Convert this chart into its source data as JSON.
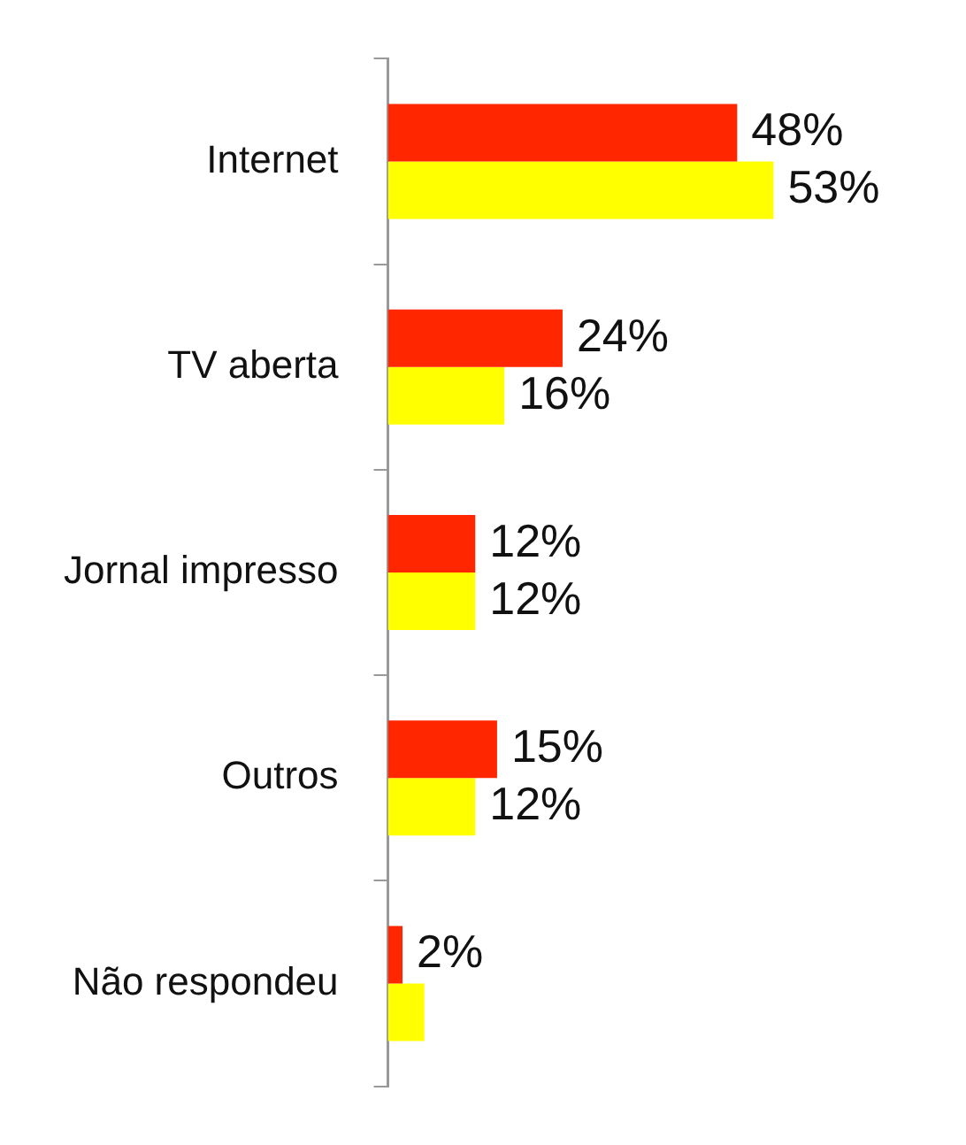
{
  "chart_data": {
    "type": "bar",
    "orientation": "horizontal",
    "categories": [
      "Internet",
      "TV aberta",
      "Jornal impresso",
      "Outros",
      "Não respondeu"
    ],
    "series": [
      {
        "color": "#ff2600",
        "values": [
          48,
          24,
          12,
          15,
          2
        ],
        "value_labels": [
          "48%",
          "24%",
          "12%",
          "15%",
          "2%"
        ]
      },
      {
        "color": "#ffff00",
        "values": [
          53,
          16,
          12,
          12,
          5
        ],
        "value_labels": [
          "53%",
          "16%",
          "12%",
          "12%",
          null
        ]
      }
    ],
    "tick_labels": "y",
    "grid": false,
    "legend": false
  }
}
